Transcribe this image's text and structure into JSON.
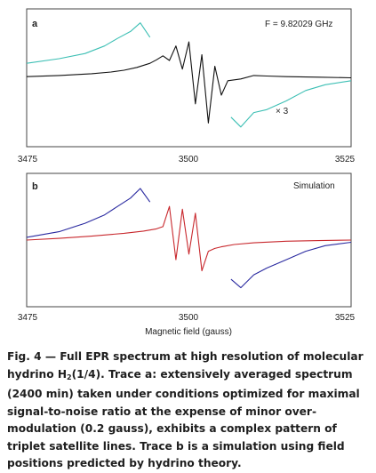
{
  "figure": {
    "panels": [
      {
        "label": "a",
        "annotation": "F = 9.82029 GHz",
        "scale_note": "× 3",
        "x_ticks": [
          "3475",
          "3500",
          "3525"
        ]
      },
      {
        "label": "b",
        "annotation": "Simulation",
        "x_ticks": [
          "3475",
          "3500",
          "3525"
        ]
      }
    ],
    "xlabel": "Magnetic field (gauss)"
  },
  "caption": {
    "lead": "Fig. 4 — Full EPR spectrum at high resolution of molecular hydrino H",
    "sub": "2",
    "rest": "(1/4). Trace a: extensively averaged spectrum (2400 min) taken under conditions optimized for maximal signal-to-noise ratio at the expense of minor over-modulation (0.2 gauss), exhibits a complex pattern of triplet satellite lines. Trace b is a simulation using field positions predicted by hydrino theory."
  },
  "chart_data": [
    {
      "type": "line",
      "panel": "a",
      "xlim": [
        3475,
        3525
      ],
      "x_ticks": [
        3475,
        3500,
        3525
      ],
      "series_colors": {
        "full_trace": "#111111",
        "expanded_x3": "#3cbfb4"
      },
      "series": [
        {
          "x": [
            3475,
            3480,
            3485,
            3488,
            3490,
            3492,
            3494,
            3495,
            3496,
            3497,
            3498,
            3499,
            3500,
            3501,
            3502,
            3503,
            3504,
            3505,
            3506,
            3508,
            3510,
            3512,
            3515,
            3520,
            3525
          ],
          "y": [
            0.02,
            0.04,
            0.07,
            0.1,
            0.13,
            0.18,
            0.25,
            0.31,
            0.38,
            0.3,
            0.55,
            0.15,
            0.62,
            -0.45,
            0.4,
            -0.78,
            0.2,
            -0.3,
            -0.05,
            -0.02,
            0.04,
            0.03,
            0.02,
            0.01,
            0.0
          ]
        },
        {
          "x": [
            3475,
            3480,
            3484,
            3487,
            3489,
            3491,
            3492.5,
            3494
          ],
          "y": [
            0.25,
            0.33,
            0.42,
            0.55,
            0.68,
            0.8,
            0.95,
            0.7
          ]
        },
        {
          "x": [
            3506.5,
            3508,
            3510,
            3512,
            3515,
            3518,
            3521,
            3525
          ],
          "y": [
            -0.68,
            -0.85,
            -0.6,
            -0.55,
            -0.4,
            -0.22,
            -0.12,
            -0.05
          ]
        }
      ]
    },
    {
      "type": "line",
      "panel": "b",
      "xlim": [
        3475,
        3525
      ],
      "x_ticks": [
        3475,
        3500,
        3525
      ],
      "series_colors": {
        "full_trace": "#c8282d",
        "expanded_x3": "#2a2aa0"
      },
      "series": [
        {
          "x": [
            3475,
            3480,
            3485,
            3490,
            3493,
            3495,
            3496,
            3497,
            3498,
            3499,
            3500,
            3501,
            3502,
            3503,
            3504,
            3505,
            3507,
            3510,
            3515,
            3520,
            3525
          ],
          "y": [
            0.0,
            0.03,
            0.07,
            0.12,
            0.16,
            0.2,
            0.24,
            0.6,
            -0.35,
            0.55,
            -0.25,
            0.48,
            -0.55,
            -0.2,
            -0.15,
            -0.12,
            -0.08,
            -0.05,
            -0.02,
            -0.01,
            0.0
          ]
        },
        {
          "x": [
            3475,
            3480,
            3484,
            3487,
            3489,
            3491,
            3492.5,
            3494
          ],
          "y": [
            0.05,
            0.15,
            0.3,
            0.45,
            0.6,
            0.75,
            0.92,
            0.68
          ]
        },
        {
          "x": [
            3506.5,
            3508,
            3510,
            3512,
            3515,
            3518,
            3521,
            3525
          ],
          "y": [
            -0.7,
            -0.85,
            -0.62,
            -0.5,
            -0.35,
            -0.2,
            -0.1,
            -0.04
          ]
        }
      ]
    }
  ]
}
